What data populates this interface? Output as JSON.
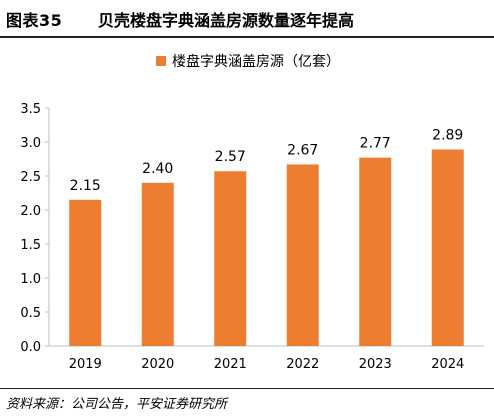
{
  "header": {
    "figure_number": "图表35",
    "title": "贝壳楼盘字典涵盖房源数量逐年提高"
  },
  "footer": {
    "source": "资料来源：公司公告，平安证券研究所"
  },
  "colors": {
    "bar": "#ED7D31",
    "axis": "#BFBFBF",
    "rule": "#222222"
  },
  "chart_data": {
    "type": "bar",
    "categories": [
      "2019",
      "2020",
      "2021",
      "2022",
      "2023",
      "2024"
    ],
    "series": [
      {
        "name": "楼盘字典涵盖房源（亿套）",
        "values": [
          2.15,
          2.4,
          2.57,
          2.67,
          2.77,
          2.89
        ],
        "labels": [
          "2.15",
          "2.40",
          "2.57",
          "2.67",
          "2.77",
          "2.89"
        ]
      }
    ],
    "ylim": [
      0,
      3.5
    ],
    "yticks": [
      "0.0",
      "0.5",
      "1.0",
      "1.5",
      "2.0",
      "2.5",
      "3.0",
      "3.5"
    ],
    "grid": false,
    "legend": "top-center"
  }
}
